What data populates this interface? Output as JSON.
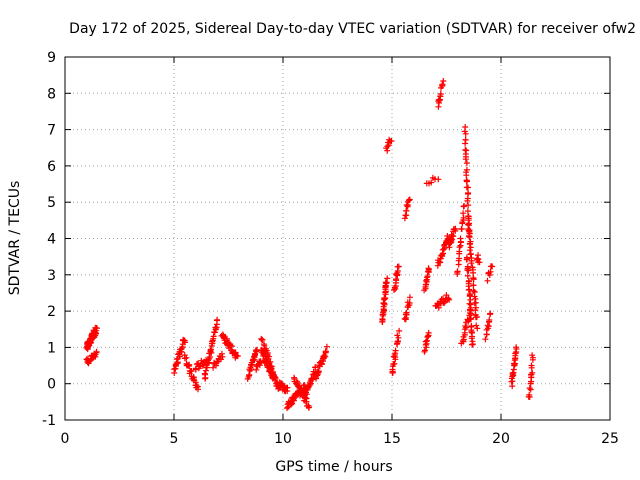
{
  "chart_data": {
    "type": "scatter",
    "title": "Day 172 of 2025, Sidereal Day-to-day VTEC variation (SDTVAR) for receiver ofw2",
    "xlabel": "GPS time / hours",
    "ylabel": "SDTVAR / TECUs",
    "xlim": [
      0,
      25
    ],
    "ylim": [
      -1,
      9
    ],
    "xticks": [
      0,
      5,
      10,
      15,
      20,
      25
    ],
    "yticks": [
      -1,
      0,
      1,
      2,
      3,
      4,
      5,
      6,
      7,
      8,
      9
    ],
    "grid": true,
    "marker": "+",
    "color": "#ff0000",
    "segments": [
      {
        "x": [
          1.0,
          1.45
        ],
        "y": [
          1.0,
          1.5
        ],
        "n": 60
      },
      {
        "x": [
          1.0,
          1.45
        ],
        "y": [
          0.6,
          0.8
        ],
        "n": 18
      },
      {
        "x": [
          5.0,
          5.5
        ],
        "y": [
          0.35,
          1.25
        ],
        "n": 30
      },
      {
        "x": [
          5.5,
          6.1
        ],
        "y": [
          0.7,
          -0.15
        ],
        "n": 25
      },
      {
        "x": [
          6.0,
          6.5
        ],
        "y": [
          0.45,
          0.65
        ],
        "n": 18
      },
      {
        "x": [
          6.4,
          7.0
        ],
        "y": [
          0.15,
          1.75
        ],
        "n": 35
      },
      {
        "x": [
          6.8,
          7.2
        ],
        "y": [
          0.5,
          0.8
        ],
        "n": 15
      },
      {
        "x": [
          7.2,
          7.9
        ],
        "y": [
          1.35,
          0.7
        ],
        "n": 35
      },
      {
        "x": [
          8.4,
          8.8
        ],
        "y": [
          0.2,
          1.0
        ],
        "n": 25
      },
      {
        "x": [
          8.8,
          9.0
        ],
        "y": [
          0.45,
          0.65
        ],
        "n": 10
      },
      {
        "x": [
          9.0,
          9.8
        ],
        "y": [
          0.9,
          -0.1
        ],
        "n": 60
      },
      {
        "x": [
          9.0,
          9.6
        ],
        "y": [
          1.3,
          0.2
        ],
        "n": 25
      },
      {
        "x": [
          9.8,
          10.2
        ],
        "y": [
          0.0,
          -0.2
        ],
        "n": 20
      },
      {
        "x": [
          10.2,
          11.0
        ],
        "y": [
          -0.6,
          -0.1
        ],
        "n": 40
      },
      {
        "x": [
          10.5,
          11.2
        ],
        "y": [
          0.1,
          -0.6
        ],
        "n": 30
      },
      {
        "x": [
          11.0,
          11.5
        ],
        "y": [
          -0.3,
          0.4
        ],
        "n": 25
      },
      {
        "x": [
          11.5,
          12.0
        ],
        "y": [
          0.2,
          0.95
        ],
        "n": 30
      },
      {
        "x": [
          14.55,
          14.75
        ],
        "y": [
          1.7,
          2.85
        ],
        "n": 35
      },
      {
        "x": [
          14.75,
          14.95
        ],
        "y": [
          6.45,
          6.75
        ],
        "n": 8
      },
      {
        "x": [
          15.0,
          15.3
        ],
        "y": [
          0.25,
          1.4
        ],
        "n": 22
      },
      {
        "x": [
          15.1,
          15.3
        ],
        "y": [
          2.6,
          3.25
        ],
        "n": 14
      },
      {
        "x": [
          15.6,
          15.8
        ],
        "y": [
          1.7,
          2.3
        ],
        "n": 14
      },
      {
        "x": [
          15.6,
          15.8
        ],
        "y": [
          4.6,
          5.15
        ],
        "n": 14
      },
      {
        "x": [
          16.5,
          16.7
        ],
        "y": [
          0.9,
          1.4
        ],
        "n": 12
      },
      {
        "x": [
          16.5,
          16.7
        ],
        "y": [
          2.6,
          3.2
        ],
        "n": 16
      },
      {
        "x": [
          16.6,
          17.1
        ],
        "y": [
          5.55,
          5.65
        ],
        "n": 6
      },
      {
        "x": [
          17.1,
          17.35
        ],
        "y": [
          7.7,
          8.25
        ],
        "n": 14
      },
      {
        "x": [
          17.0,
          17.6
        ],
        "y": [
          2.1,
          2.4
        ],
        "n": 22
      },
      {
        "x": [
          17.1,
          17.6
        ],
        "y": [
          3.3,
          4.05
        ],
        "n": 25
      },
      {
        "x": [
          17.6,
          17.9
        ],
        "y": [
          3.8,
          4.3
        ],
        "n": 18
      },
      {
        "x": [
          18.0,
          18.3
        ],
        "y": [
          3.0,
          4.9
        ],
        "n": 22
      },
      {
        "x": [
          18.35,
          18.55
        ],
        "y": [
          7.0,
          4.0
        ],
        "n": 35
      },
      {
        "x": [
          18.45,
          18.7
        ],
        "y": [
          3.5,
          1.0
        ],
        "n": 40
      },
      {
        "x": [
          18.5,
          18.9
        ],
        "y": [
          4.5,
          1.6
        ],
        "n": 40
      },
      {
        "x": [
          18.2,
          18.6
        ],
        "y": [
          1.1,
          2.0
        ],
        "n": 18
      },
      {
        "x": [
          18.9,
          19.0
        ],
        "y": [
          3.5,
          3.3
        ],
        "n": 6
      },
      {
        "x": [
          19.3,
          19.5
        ],
        "y": [
          1.3,
          1.9
        ],
        "n": 12
      },
      {
        "x": [
          19.4,
          19.6
        ],
        "y": [
          2.9,
          3.3
        ],
        "n": 8
      },
      {
        "x": [
          20.5,
          20.7
        ],
        "y": [
          0.0,
          1.0
        ],
        "n": 24
      },
      {
        "x": [
          21.3,
          21.45
        ],
        "y": [
          -0.4,
          0.7
        ],
        "n": 18
      }
    ]
  }
}
